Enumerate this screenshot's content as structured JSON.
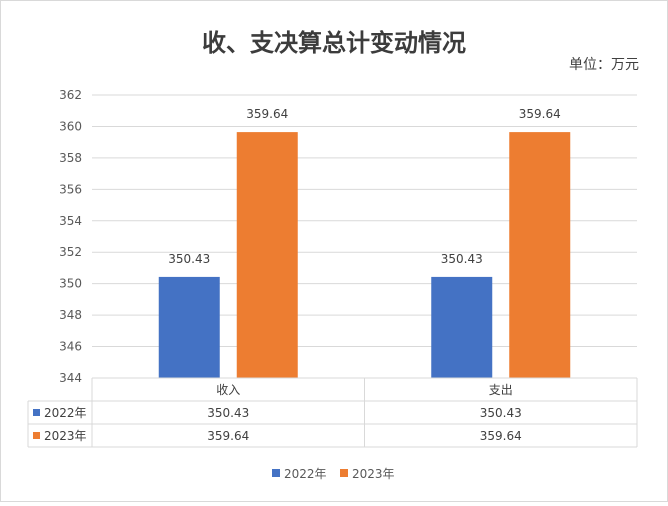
{
  "chart_data": {
    "type": "bar",
    "title": "收、支决算总计变动情况",
    "unit_label": "单位：万元",
    "categories": [
      "收入",
      "支出"
    ],
    "series": [
      {
        "name": "2022年",
        "values": [
          350.43,
          350.43
        ],
        "labels": [
          "350.43",
          "350.43"
        ],
        "color": "#4472C4"
      },
      {
        "name": "2023年",
        "values": [
          359.64,
          359.64
        ],
        "labels": [
          "359.64",
          "359.64"
        ],
        "color": "#ED7D31"
      }
    ],
    "ylim": [
      344,
      362
    ],
    "yticks": [
      344,
      346,
      348,
      350,
      352,
      354,
      356,
      358,
      360,
      362
    ],
    "grid": true,
    "data_table": true,
    "legend_position": "bottom"
  }
}
